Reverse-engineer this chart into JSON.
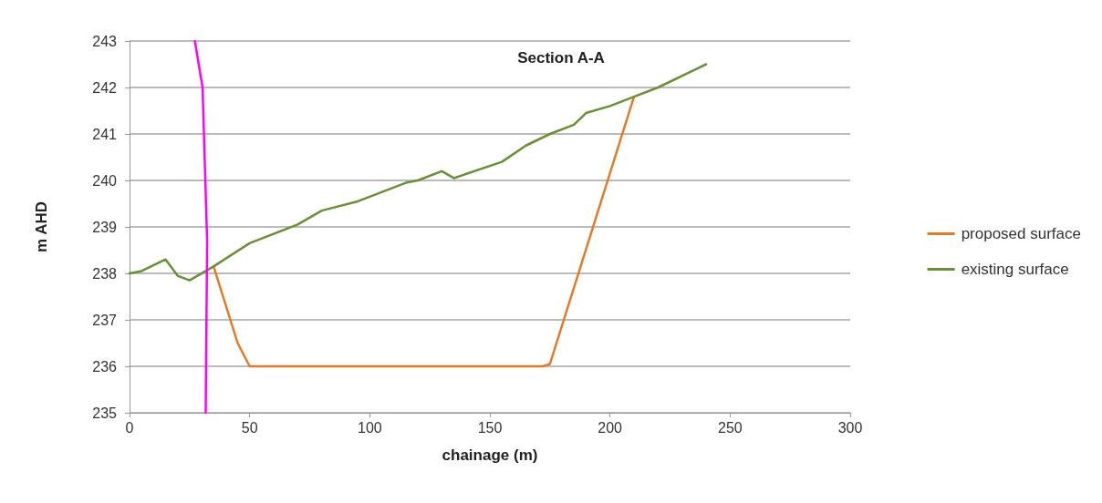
{
  "chart_data": {
    "type": "line",
    "title": "Section A-A",
    "xlabel": "chainage (m)",
    "ylabel": "m AHD",
    "xlim": [
      0,
      300
    ],
    "xticks": [
      0,
      50,
      100,
      150,
      200,
      250,
      300
    ],
    "ylim": [
      235,
      243
    ],
    "yticks": [
      235,
      236,
      237,
      238,
      239,
      240,
      241,
      242,
      243
    ],
    "grid": "y",
    "legend": "right",
    "marker": "none",
    "line_style": "solid",
    "series": [
      {
        "name": "proposed surface",
        "color": "#e07b2a",
        "x": [
          35,
          45,
          50,
          172,
          175,
          210
        ],
        "values": [
          238.15,
          236.5,
          236.0,
          236.0,
          236.05,
          241.8
        ]
      },
      {
        "name": "existing surface",
        "color": "#6b8e3a",
        "x": [
          0,
          5,
          15,
          20,
          25,
          35,
          50,
          60,
          70,
          80,
          95,
          100,
          115,
          120,
          130,
          135,
          155,
          165,
          175,
          185,
          190,
          200,
          210,
          220,
          240
        ],
        "values": [
          238.0,
          238.05,
          238.3,
          237.95,
          237.85,
          238.15,
          238.65,
          238.85,
          239.05,
          239.35,
          239.55,
          239.65,
          239.95,
          240.0,
          240.2,
          240.05,
          240.4,
          240.75,
          241.0,
          241.2,
          241.45,
          241.6,
          241.8,
          242.0,
          242.5
        ]
      },
      {
        "color": "#ff00ff",
        "x": [
          27.2,
          30.4,
          32.3,
          31.7
        ],
        "values": [
          243,
          242,
          238.7,
          235
        ]
      }
    ]
  }
}
